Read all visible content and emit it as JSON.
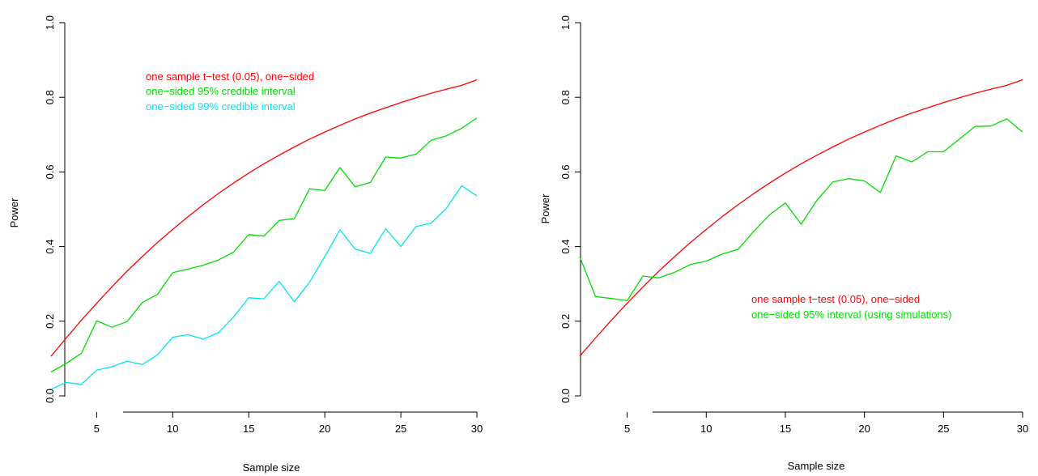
{
  "chart_data": [
    {
      "type": "line",
      "xlabel": "Sample size",
      "ylabel": "Power",
      "xlim": [
        2,
        30
      ],
      "ylim": [
        0,
        1
      ],
      "xticks": [
        5,
        10,
        15,
        20,
        25,
        30
      ],
      "yticks": [
        0.0,
        0.2,
        0.4,
        0.6,
        0.8,
        1.0
      ],
      "ytick_labels": [
        "0.0",
        "0.2",
        "0.4",
        "0.6",
        "0.8",
        "1.0"
      ],
      "legend_position": "top-left",
      "x": [
        2,
        3,
        4,
        5,
        6,
        7,
        8,
        9,
        10,
        11,
        12,
        13,
        14,
        15,
        16,
        17,
        18,
        19,
        20,
        21,
        22,
        23,
        24,
        25,
        26,
        27,
        28,
        29,
        30
      ],
      "series": [
        {
          "name": "one sample t−test (0.05), one−sided",
          "color": "#ff0000",
          "values": [
            0.106,
            0.155,
            0.203,
            0.248,
            0.292,
            0.334,
            0.373,
            0.411,
            0.446,
            0.48,
            0.512,
            0.542,
            0.57,
            0.597,
            0.622,
            0.645,
            0.667,
            0.688,
            0.707,
            0.725,
            0.742,
            0.758,
            0.772,
            0.786,
            0.799,
            0.811,
            0.822,
            0.832,
            0.847
          ]
        },
        {
          "name": "one−sided 95% credible interval",
          "color": "#00dd00",
          "values": [
            0.064,
            0.087,
            0.114,
            0.201,
            0.184,
            0.199,
            0.25,
            0.272,
            0.33,
            0.34,
            0.35,
            0.364,
            0.385,
            0.432,
            0.428,
            0.47,
            0.475,
            0.555,
            0.55,
            0.612,
            0.56,
            0.572,
            0.64,
            0.637,
            0.648,
            0.685,
            0.697,
            0.717,
            0.745
          ]
        },
        {
          "name": "one−sided 99% credible interval",
          "color": "#00e5ee",
          "values": [
            0.018,
            0.036,
            0.031,
            0.069,
            0.078,
            0.093,
            0.084,
            0.11,
            0.157,
            0.164,
            0.152,
            0.169,
            0.211,
            0.263,
            0.26,
            0.307,
            0.252,
            0.305,
            0.373,
            0.445,
            0.393,
            0.382,
            0.448,
            0.4,
            0.454,
            0.463,
            0.503,
            0.563,
            0.536
          ]
        }
      ]
    },
    {
      "type": "line",
      "xlabel": "Sample size",
      "ylabel": "Power",
      "xlim": [
        2,
        30
      ],
      "ylim": [
        0,
        1
      ],
      "xticks": [
        5,
        10,
        15,
        20,
        25,
        30
      ],
      "yticks": [
        0.0,
        0.2,
        0.4,
        0.6,
        0.8,
        1.0
      ],
      "ytick_labels": [
        "0.0",
        "0.2",
        "0.4",
        "0.6",
        "0.8",
        "1.0"
      ],
      "legend_position": "center-right",
      "x": [
        2,
        3,
        4,
        5,
        6,
        7,
        8,
        9,
        10,
        11,
        12,
        13,
        14,
        15,
        16,
        17,
        18,
        19,
        20,
        21,
        22,
        23,
        24,
        25,
        26,
        27,
        28,
        29,
        30
      ],
      "series": [
        {
          "name": "one sample t−test (0.05), one−sided",
          "color": "#ff0000",
          "values": [
            0.106,
            0.155,
            0.203,
            0.248,
            0.292,
            0.334,
            0.373,
            0.411,
            0.446,
            0.48,
            0.512,
            0.542,
            0.57,
            0.597,
            0.622,
            0.645,
            0.667,
            0.688,
            0.707,
            0.725,
            0.742,
            0.758,
            0.772,
            0.786,
            0.799,
            0.811,
            0.822,
            0.832,
            0.847
          ]
        },
        {
          "name": "one−sided 95% interval (using simulations)",
          "color": "#00dd00",
          "values": [
            0.373,
            0.266,
            0.261,
            0.255,
            0.321,
            0.316,
            0.331,
            0.352,
            0.361,
            0.38,
            0.392,
            0.441,
            0.485,
            0.517,
            0.46,
            0.524,
            0.573,
            0.582,
            0.576,
            0.545,
            0.643,
            0.627,
            0.654,
            0.654,
            0.688,
            0.722,
            0.723,
            0.742,
            0.707
          ]
        }
      ]
    }
  ]
}
